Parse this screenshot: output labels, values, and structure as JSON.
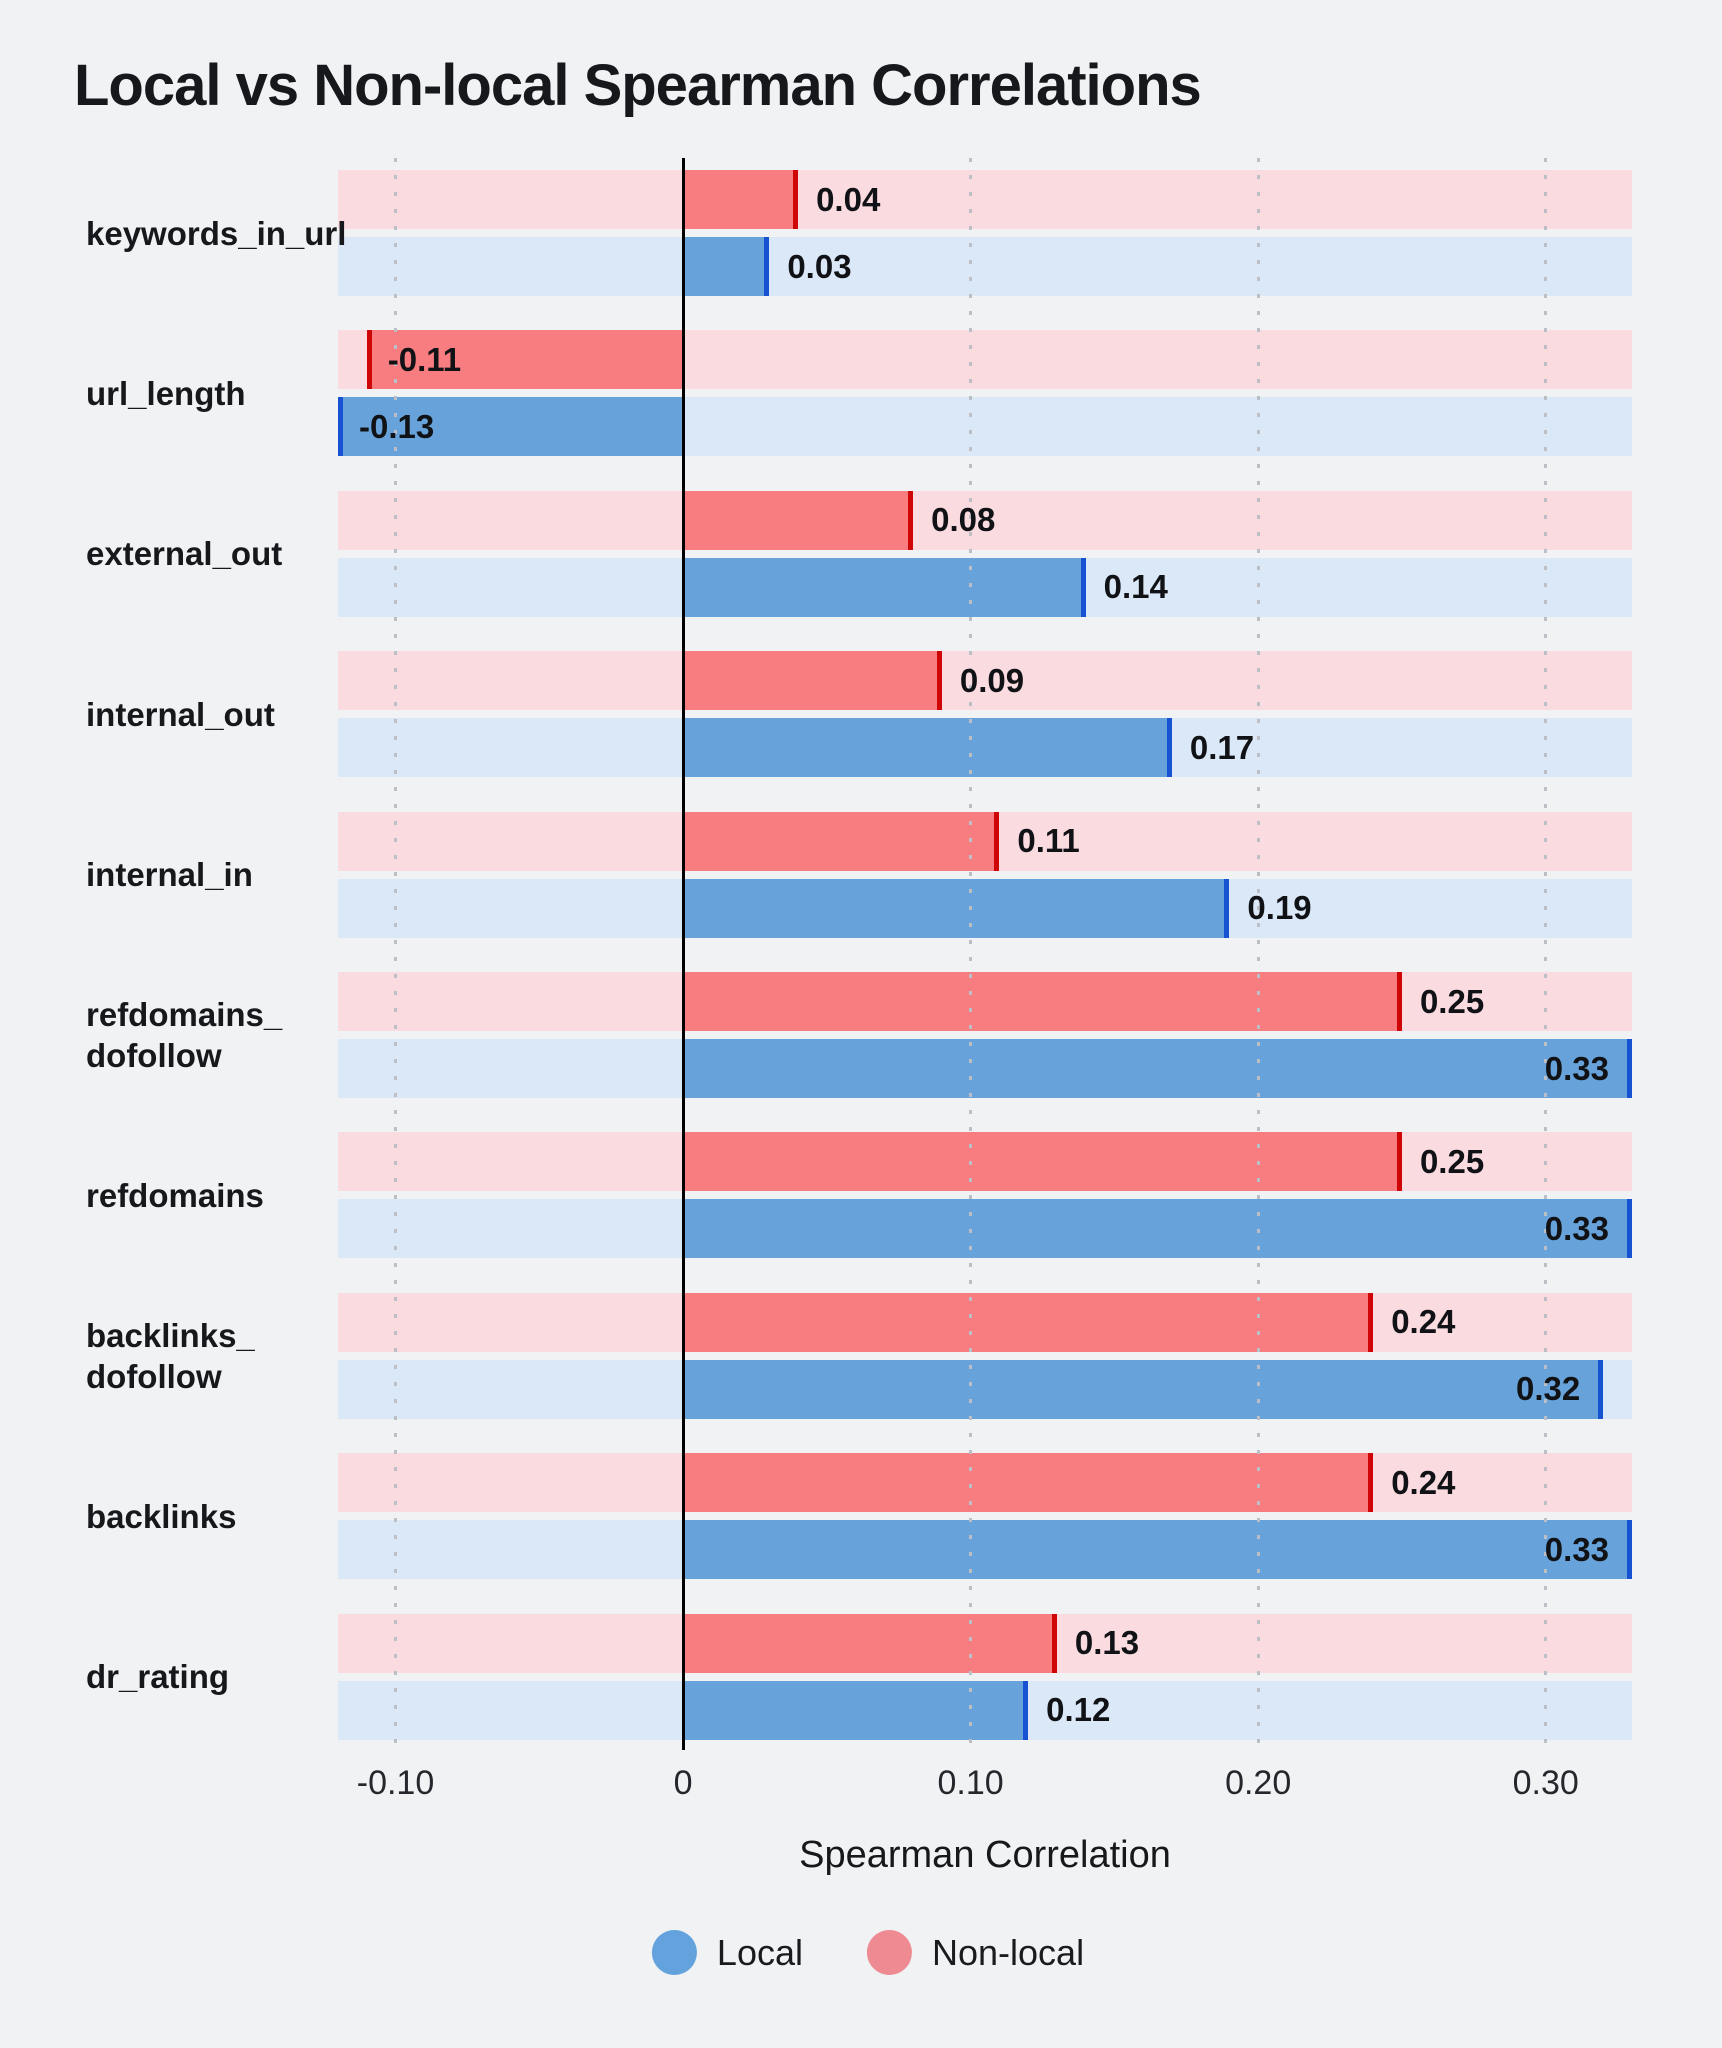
{
  "title": "Local vs Non-local Spearman Correlations",
  "x_axis": {
    "title": "Spearman Correlation",
    "range": [
      -0.12,
      0.33
    ],
    "ticks": [
      {
        "value": -0.1,
        "label": "-0.10"
      },
      {
        "value": 0,
        "label": "0"
      },
      {
        "value": 0.1,
        "label": "0.10"
      },
      {
        "value": 0.2,
        "label": "0.20"
      },
      {
        "value": 0.3,
        "label": "0.30"
      }
    ]
  },
  "legend": {
    "items": [
      {
        "label": "Local",
        "color": "#63a2dc"
      },
      {
        "label": "Non-local",
        "color": "#ee8b92"
      }
    ]
  },
  "colors": {
    "background": "#f1f2f4",
    "nonlocal_bar": "#f87d80",
    "nonlocal_edge": "#cf0606",
    "nonlocal_track": "#fadbe0",
    "local_bar": "#67a3da",
    "local_edge": "#1652d2",
    "local_track": "#dbe8f7",
    "grid_dot": "#bcc0c6",
    "zero_line": "#000000",
    "text": "#17181c"
  },
  "chart_data": {
    "type": "bar",
    "orientation": "horizontal",
    "title": "Local vs Non-local Spearman Correlations",
    "xlabel": "Spearman Correlation",
    "ylabel": "",
    "xlim": [
      -0.12,
      0.33
    ],
    "grid": true,
    "legend_position": "bottom-center",
    "categories": [
      "keywords_in_url",
      "url_length",
      "external_out",
      "internal_out",
      "internal_in",
      "refdomains_dofollow",
      "refdomains",
      "backlinks_dofollow",
      "backlinks",
      "dr_rating"
    ],
    "category_display_lines": [
      [
        "keywords_in_url"
      ],
      [
        "url_length"
      ],
      [
        "external_out"
      ],
      [
        "internal_out"
      ],
      [
        "internal_in"
      ],
      [
        "refdomains_",
        "dofollow"
      ],
      [
        "refdomains"
      ],
      [
        "backlinks_",
        "dofollow"
      ],
      [
        "backlinks"
      ],
      [
        "dr_rating"
      ]
    ],
    "series": [
      {
        "name": "Non-local",
        "values": [
          0.04,
          -0.11,
          0.08,
          0.09,
          0.11,
          0.25,
          0.25,
          0.24,
          0.24,
          0.13
        ],
        "value_labels": [
          "0.04",
          "-0.11",
          "0.08",
          "0.09",
          "0.11",
          "0.25",
          "0.25",
          "0.24",
          "0.24",
          "0.13"
        ]
      },
      {
        "name": "Local",
        "values": [
          0.03,
          -0.13,
          0.14,
          0.17,
          0.19,
          0.33,
          0.33,
          0.32,
          0.33,
          0.12
        ],
        "value_labels": [
          "0.03",
          "-0.13",
          "0.14",
          "0.17",
          "0.19",
          "0.33",
          "0.33",
          "0.32",
          "0.33",
          "0.12"
        ]
      }
    ]
  }
}
